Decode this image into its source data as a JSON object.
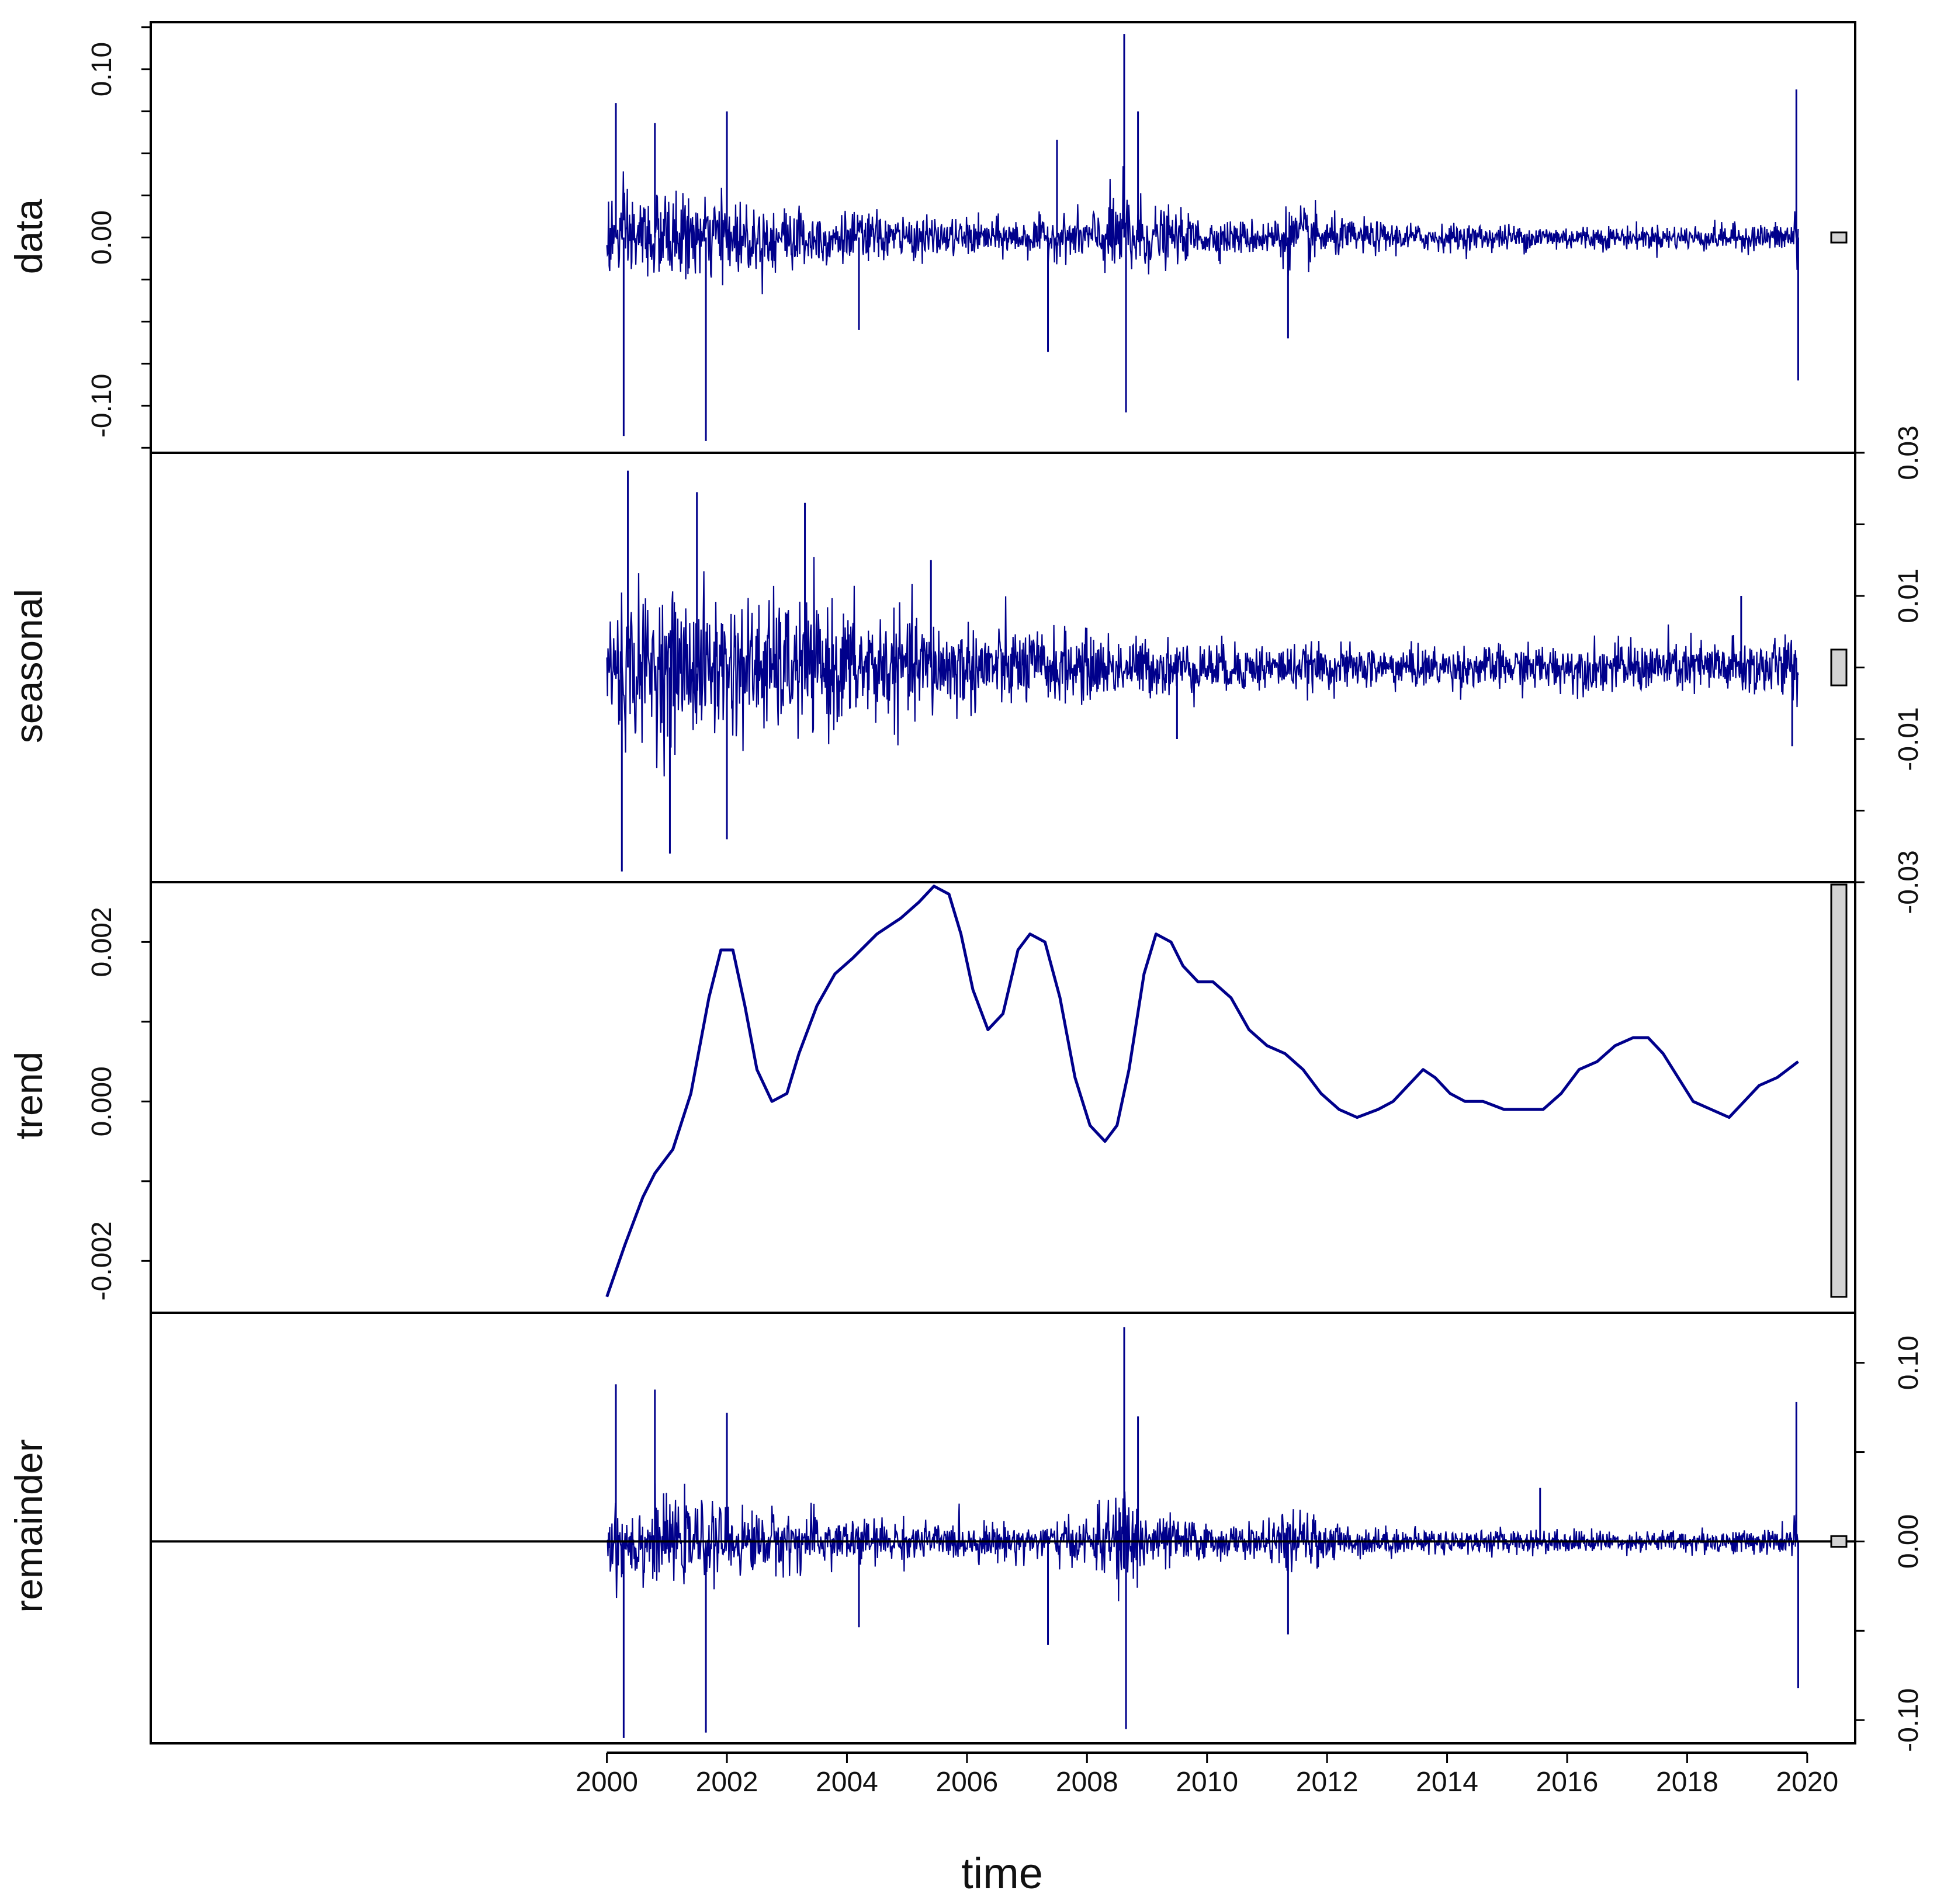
{
  "chart_data": {
    "type": "line",
    "title": "",
    "xlabel": "time",
    "xlim": [
      1992.4,
      2020.8
    ],
    "x_ticks": [
      "2000",
      "2002",
      "2004",
      "2006",
      "2008",
      "2010",
      "2012",
      "2014",
      "2016",
      "2018",
      "2020"
    ],
    "x_tick_values": [
      2000,
      2002,
      2004,
      2006,
      2008,
      2010,
      2012,
      2014,
      2016,
      2018,
      2020
    ],
    "series_color": "#00008B",
    "range_bar_color": "#D3D3D3",
    "panels": [
      {
        "name": "data",
        "ylim": [
          -0.128,
          0.128
        ],
        "ticks": [
          -0.1,
          0.0,
          0.1
        ],
        "tick_labels": [
          "-0.10",
          "0.00",
          "0.10"
        ],
        "minor_ticks": [
          -0.125,
          -0.075,
          -0.05,
          -0.025,
          0.025,
          0.05,
          0.075,
          0.125
        ],
        "tick_side": "left",
        "baseline": false,
        "volatility": {
          "x": [
            2000.0,
            2000.5,
            2001.0,
            2001.5,
            2002.0,
            2002.5,
            2003.0,
            2003.5,
            2004.0,
            2004.5,
            2005.0,
            2005.5,
            2006.0,
            2006.5,
            2007.0,
            2007.5,
            2008.0,
            2008.3,
            2008.6,
            2008.8,
            2009.0,
            2009.5,
            2010.0,
            2010.5,
            2011.0,
            2011.4,
            2011.7,
            2012.0,
            2012.5,
            2013.0,
            2014.0,
            2015.0,
            2016.0,
            2017.0,
            2018.0,
            2019.0,
            2019.7,
            2019.85
          ],
          "y": [
            0.024,
            0.024,
            0.022,
            0.021,
            0.02,
            0.019,
            0.018,
            0.016,
            0.014,
            0.013,
            0.011,
            0.01,
            0.01,
            0.01,
            0.01,
            0.011,
            0.013,
            0.018,
            0.03,
            0.024,
            0.018,
            0.013,
            0.01,
            0.009,
            0.01,
            0.017,
            0.016,
            0.011,
            0.009,
            0.008,
            0.007,
            0.007,
            0.007,
            0.006,
            0.007,
            0.007,
            0.008,
            0.025
          ]
        },
        "spikes": [
          {
            "x": 2000.15,
            "y": 0.08
          },
          {
            "x": 2000.28,
            "y": -0.118
          },
          {
            "x": 2000.8,
            "y": 0.068
          },
          {
            "x": 2001.65,
            "y": -0.121
          },
          {
            "x": 2002.0,
            "y": 0.075
          },
          {
            "x": 2004.2,
            "y": -0.055
          },
          {
            "x": 2007.35,
            "y": -0.068
          },
          {
            "x": 2007.5,
            "y": 0.058
          },
          {
            "x": 2008.62,
            "y": 0.121
          },
          {
            "x": 2008.65,
            "y": -0.104
          },
          {
            "x": 2008.85,
            "y": 0.075
          },
          {
            "x": 2011.35,
            "y": -0.06
          },
          {
            "x": 2019.82,
            "y": 0.088
          },
          {
            "x": 2019.85,
            "y": -0.085
          }
        ],
        "range_bar": [
          -0.003,
          0.003
        ]
      },
      {
        "name": "seasonal",
        "ylim": [
          -0.03,
          0.03
        ],
        "ticks": [
          -0.03,
          -0.01,
          0.01,
          0.03
        ],
        "tick_labels": [
          "-0.03",
          "-0.01",
          "0.01",
          "0.03"
        ],
        "minor_ticks": [
          -0.02,
          0.0,
          0.02
        ],
        "tick_side": "right",
        "baseline": false,
        "volatility": {
          "x": [
            2000.0,
            2001.0,
            2002.0,
            2003.0,
            2004.0,
            2005.0,
            2006.0,
            2007.0,
            2008.0,
            2009.0,
            2010.0,
            2011.0,
            2012.0,
            2013.0,
            2014.0,
            2015.0,
            2016.0,
            2017.0,
            2018.0,
            2019.0,
            2019.85
          ],
          "y": [
            0.009,
            0.0092,
            0.0088,
            0.0082,
            0.0075,
            0.0065,
            0.0055,
            0.0048,
            0.0042,
            0.0036,
            0.0032,
            0.0029,
            0.0027,
            0.0026,
            0.0026,
            0.0027,
            0.0029,
            0.0031,
            0.0034,
            0.0037,
            0.004
          ]
        },
        "spikes": [
          {
            "x": 2000.35,
            "y": 0.0275
          },
          {
            "x": 2000.25,
            "y": -0.0285
          },
          {
            "x": 2001.05,
            "y": -0.026
          },
          {
            "x": 2001.5,
            "y": 0.0245
          },
          {
            "x": 2002.0,
            "y": -0.024
          },
          {
            "x": 2003.3,
            "y": 0.023
          },
          {
            "x": 2005.4,
            "y": 0.015
          },
          {
            "x": 2009.5,
            "y": -0.01
          },
          {
            "x": 2018.9,
            "y": 0.01
          },
          {
            "x": 2019.75,
            "y": -0.011
          }
        ],
        "range_bar": [
          -0.0025,
          0.0025
        ]
      },
      {
        "name": "trend",
        "ylim": [
          -0.00265,
          0.00275
        ],
        "ticks": [
          -0.002,
          0.0,
          0.002
        ],
        "tick_labels": [
          "-0.002",
          "0.000",
          "0.002"
        ],
        "minor_ticks": [
          -0.001,
          0.001
        ],
        "tick_side": "left",
        "baseline": false,
        "x": [
          2000.0,
          2000.3,
          2000.6,
          2000.8,
          2001.1,
          2001.4,
          2001.7,
          2001.9,
          2002.1,
          2002.3,
          2002.5,
          2002.75,
          2003.0,
          2003.2,
          2003.5,
          2003.8,
          2004.1,
          2004.5,
          2004.9,
          2005.2,
          2005.45,
          2005.7,
          2005.9,
          2006.1,
          2006.35,
          2006.6,
          2006.85,
          2007.05,
          2007.3,
          2007.55,
          2007.8,
          2008.05,
          2008.3,
          2008.5,
          2008.7,
          2008.95,
          2009.15,
          2009.4,
          2009.6,
          2009.85,
          2010.1,
          2010.4,
          2010.7,
          2011.0,
          2011.3,
          2011.6,
          2011.9,
          2012.2,
          2012.5,
          2012.85,
          2013.1,
          2013.35,
          2013.6,
          2013.8,
          2014.05,
          2014.3,
          2014.6,
          2014.95,
          2015.3,
          2015.6,
          2015.9,
          2016.2,
          2016.5,
          2016.8,
          2017.1,
          2017.35,
          2017.6,
          2017.85,
          2018.1,
          2018.4,
          2018.7,
          2018.95,
          2019.2,
          2019.5,
          2019.85
        ],
        "y": [
          -0.00245,
          -0.0018,
          -0.0012,
          -0.0009,
          -0.0006,
          0.0001,
          0.0013,
          0.0019,
          0.0019,
          0.0012,
          0.0004,
          0.0,
          0.0001,
          0.0006,
          0.0012,
          0.0016,
          0.0018,
          0.0021,
          0.0023,
          0.0025,
          0.0027,
          0.0026,
          0.0021,
          0.0014,
          0.0009,
          0.0011,
          0.0019,
          0.0021,
          0.002,
          0.0013,
          0.0003,
          -0.0003,
          -0.0005,
          -0.0003,
          0.0004,
          0.0016,
          0.0021,
          0.002,
          0.0017,
          0.0015,
          0.0015,
          0.0013,
          0.0009,
          0.0007,
          0.0006,
          0.0004,
          0.0001,
          -0.0001,
          -0.0002,
          -0.0001,
          0.0,
          0.0002,
          0.0004,
          0.0003,
          0.0001,
          0.0,
          0.0,
          -0.0001,
          -0.0001,
          -0.0001,
          0.0001,
          0.0004,
          0.0005,
          0.0007,
          0.0008,
          0.0008,
          0.0006,
          0.0003,
          0.0,
          -0.0001,
          -0.0002,
          0.0,
          0.0002,
          0.0003,
          0.0005
        ],
        "range_bar": [
          -0.00245,
          0.00272
        ]
      },
      {
        "name": "remainder",
        "ylim": [
          -0.113,
          0.128
        ],
        "ticks": [
          -0.1,
          0.0,
          0.1
        ],
        "tick_labels": [
          "-0.10",
          "0.00",
          "0.10"
        ],
        "minor_ticks": [
          -0.05,
          0.05
        ],
        "tick_side": "right",
        "baseline": true,
        "volatility": {
          "x": [
            2000.0,
            2000.5,
            2001.0,
            2001.5,
            2002.0,
            2002.5,
            2003.0,
            2003.5,
            2004.0,
            2004.5,
            2005.0,
            2005.5,
            2006.0,
            2006.5,
            2007.0,
            2007.5,
            2008.0,
            2008.3,
            2008.6,
            2008.8,
            2009.0,
            2009.5,
            2010.0,
            2010.5,
            2011.0,
            2011.4,
            2011.7,
            2012.0,
            2012.5,
            2013.0,
            2014.0,
            2015.0,
            2016.0,
            2017.0,
            2018.0,
            2019.0,
            2019.7,
            2019.85
          ],
          "y": [
            0.021,
            0.021,
            0.019,
            0.018,
            0.017,
            0.016,
            0.015,
            0.014,
            0.012,
            0.011,
            0.01,
            0.009,
            0.009,
            0.009,
            0.009,
            0.01,
            0.012,
            0.017,
            0.028,
            0.022,
            0.016,
            0.012,
            0.009,
            0.008,
            0.009,
            0.015,
            0.014,
            0.01,
            0.008,
            0.007,
            0.006,
            0.006,
            0.006,
            0.005,
            0.006,
            0.006,
            0.007,
            0.022
          ]
        },
        "spikes": [
          {
            "x": 2000.15,
            "y": 0.088
          },
          {
            "x": 2000.28,
            "y": -0.11
          },
          {
            "x": 2000.8,
            "y": 0.085
          },
          {
            "x": 2001.65,
            "y": -0.107
          },
          {
            "x": 2002.0,
            "y": 0.072
          },
          {
            "x": 2004.2,
            "y": -0.048
          },
          {
            "x": 2007.35,
            "y": -0.058
          },
          {
            "x": 2008.62,
            "y": 0.12
          },
          {
            "x": 2008.65,
            "y": -0.105
          },
          {
            "x": 2008.85,
            "y": 0.07
          },
          {
            "x": 2011.35,
            "y": -0.052
          },
          {
            "x": 2015.55,
            "y": 0.03
          },
          {
            "x": 2019.82,
            "y": 0.078
          },
          {
            "x": 2019.85,
            "y": -0.082
          }
        ],
        "range_bar": [
          -0.003,
          0.003
        ]
      }
    ]
  }
}
